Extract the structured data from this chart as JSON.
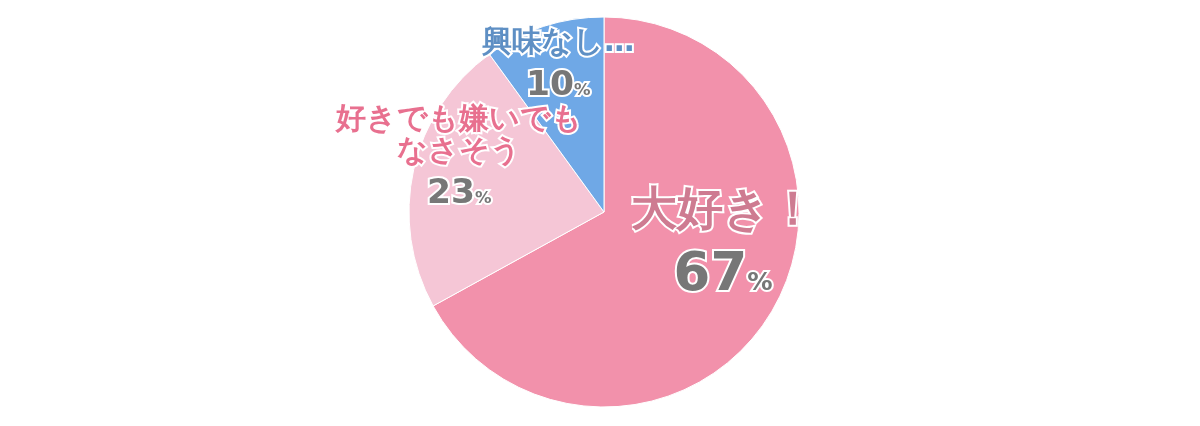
{
  "chart_data": {
    "type": "pie",
    "categories": [
      "大好き！",
      "好きでも嫌いでもなさそう",
      "興味なし…"
    ],
    "values": [
      67,
      23,
      10
    ],
    "colors": [
      "#f291ab",
      "#f5c6d6",
      "#6fa8e6"
    ],
    "value_labels": [
      "67%",
      "23%",
      "10%"
    ]
  }
}
